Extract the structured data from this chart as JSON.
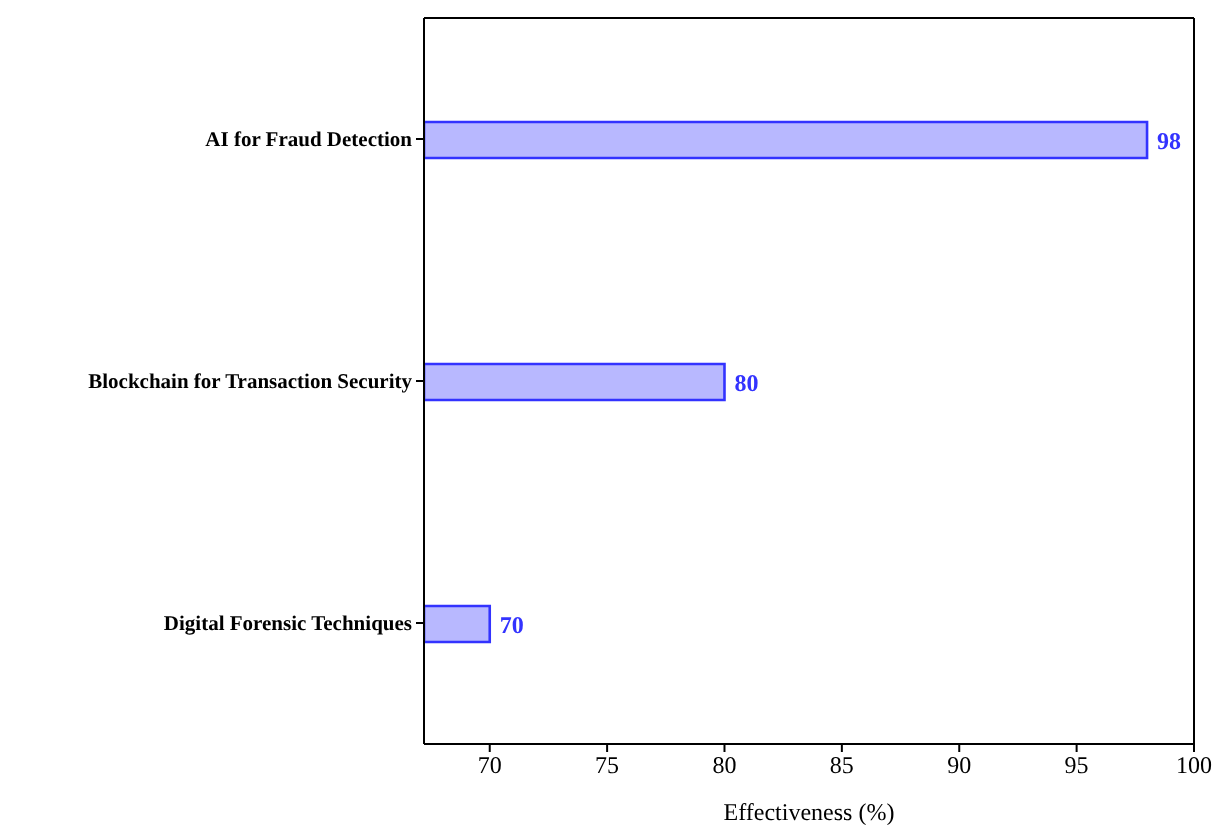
{
  "chart_data": {
    "type": "bar",
    "orientation": "horizontal",
    "xlabel": "Effectiveness (%)",
    "categories": [
      "AI for Fraud Detection",
      "Blockchain for Transaction Security",
      "Digital Forensic Techniques"
    ],
    "values": [
      98,
      80,
      70
    ],
    "color": "#3333ff",
    "xlim": [
      67.2,
      100
    ],
    "xticks": [
      70,
      75,
      80,
      85,
      90,
      95,
      100
    ],
    "data_labels": true,
    "grid": false
  }
}
